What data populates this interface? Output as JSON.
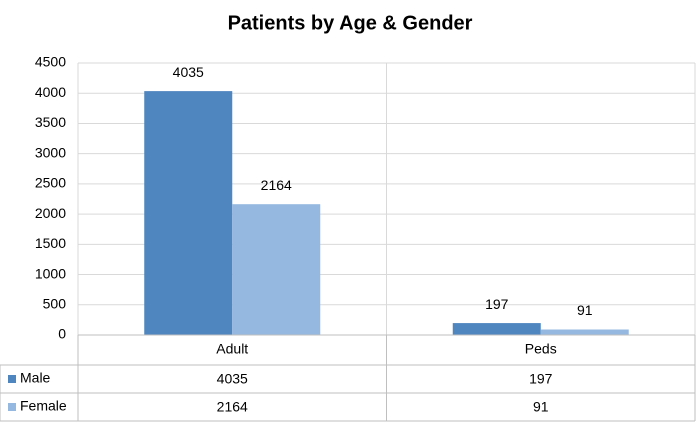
{
  "chart_data": {
    "type": "bar",
    "title": "Patients by Age & Gender",
    "categories": [
      "Adult",
      "Peds"
    ],
    "series": [
      {
        "name": "Male",
        "color": "#4f86c0",
        "values": [
          4035,
          197
        ]
      },
      {
        "name": "Female",
        "color": "#95b8e0",
        "values": [
          2164,
          91
        ]
      }
    ],
    "ylim": [
      0,
      4500
    ],
    "yticks": [
      0,
      500,
      1000,
      1500,
      2000,
      2500,
      3000,
      3500,
      4000,
      4500
    ],
    "grid": true
  }
}
